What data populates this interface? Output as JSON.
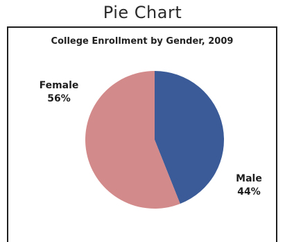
{
  "page": {
    "title": "Pie Chart"
  },
  "chart_data": {
    "type": "pie",
    "title": "College Enrollment by Gender, 2009",
    "categories": [
      "Male",
      "Female"
    ],
    "values": [
      44,
      56
    ],
    "labels": [
      "44%",
      "56%"
    ],
    "colors": [
      "#3a5b97",
      "#d38a8a"
    ],
    "legend": "none",
    "start_angle": "top, clockwise"
  }
}
